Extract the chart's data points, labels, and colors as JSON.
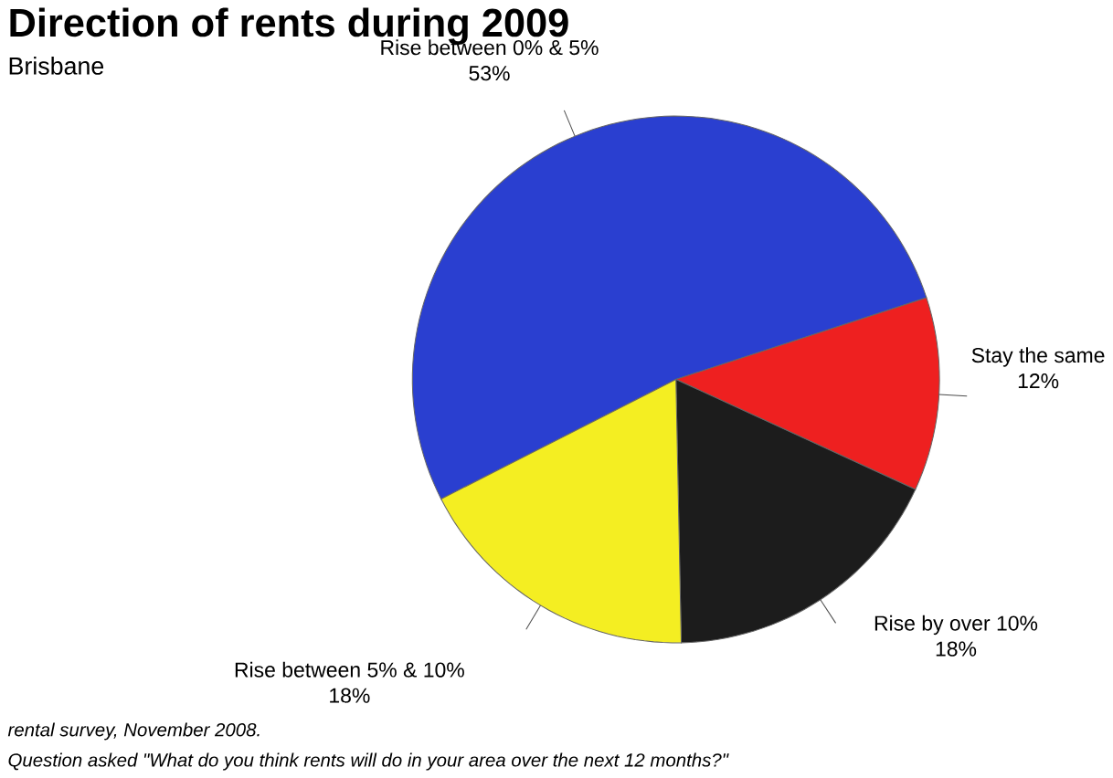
{
  "chart_data": {
    "type": "pie",
    "title": "Direction of rents during 2009",
    "subtitle": "Brisbane",
    "categories": [
      "Rise between 0% & 5%",
      "Stay the same",
      "Rise by over 10%",
      "Rise between 5% & 10%"
    ],
    "values": [
      53,
      12,
      18,
      18
    ],
    "value_labels": [
      "53%",
      "12%",
      "18%",
      "18%"
    ],
    "colors": [
      "#2a3fd0",
      "#ee2020",
      "#1c1c1c",
      "#f4ee22"
    ],
    "annotations": [
      "rental survey, November 2008.",
      "Question asked \"What do you think rents will do in your area over the next 12 months?\""
    ]
  }
}
